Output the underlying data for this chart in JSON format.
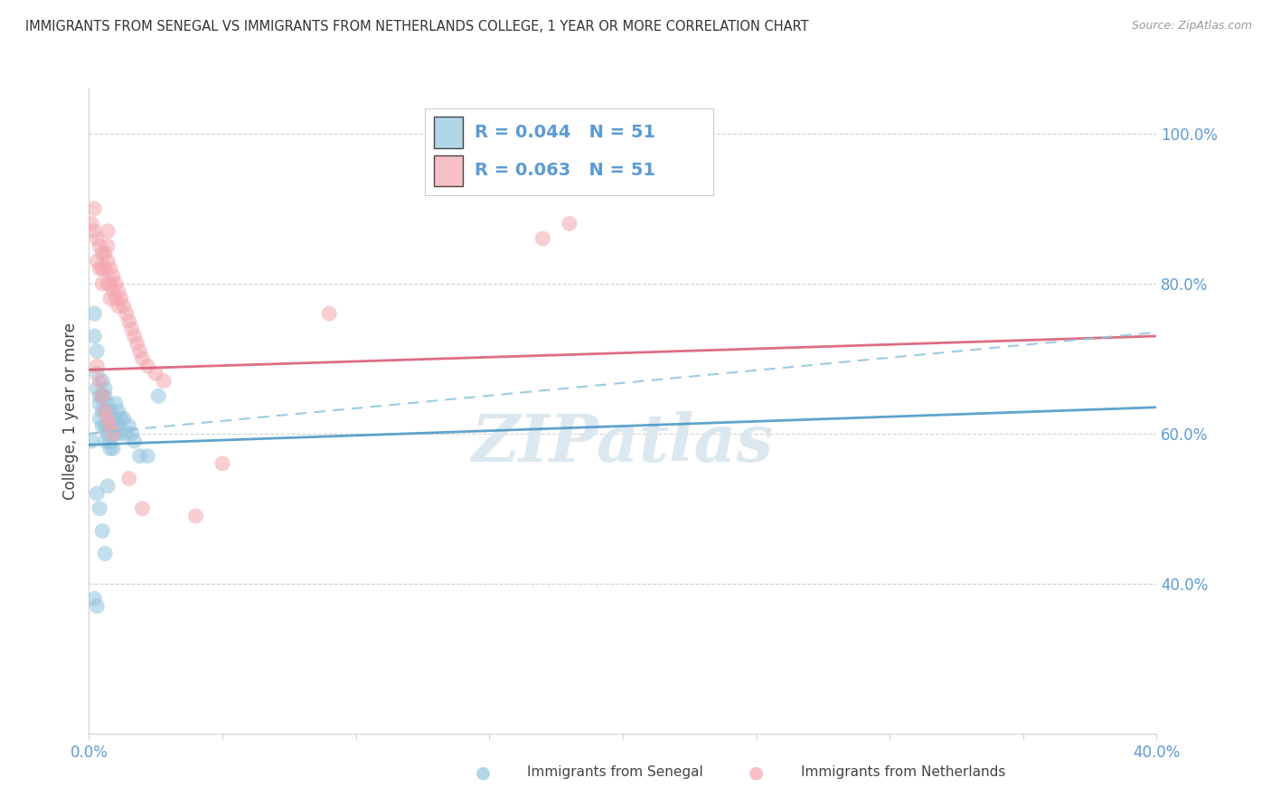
{
  "title": "IMMIGRANTS FROM SENEGAL VS IMMIGRANTS FROM NETHERLANDS COLLEGE, 1 YEAR OR MORE CORRELATION CHART",
  "source": "Source: ZipAtlas.com",
  "xlabel_blue": "Immigrants from Senegal",
  "xlabel_pink": "Immigrants from Netherlands",
  "ylabel": "College, 1 year or more",
  "xmin": 0.0,
  "xmax": 0.4,
  "ymin": 0.2,
  "ymax": 1.06,
  "right_yticks": [
    1.0,
    0.8,
    0.6,
    0.4
  ],
  "right_yticklabels": [
    "100.0%",
    "80.0%",
    "60.0%",
    "40.0%"
  ],
  "xticks": [
    0.0,
    0.05,
    0.1,
    0.15,
    0.2,
    0.25,
    0.3,
    0.35,
    0.4
  ],
  "xticklabels": [
    "0.0%",
    "",
    "",
    "",
    "",
    "",
    "",
    "",
    "40.0%"
  ],
  "legend_blue_R": "R = 0.044",
  "legend_blue_N": "N = 51",
  "legend_pink_R": "R = 0.063",
  "legend_pink_N": "N = 51",
  "blue_color": "#92c5de",
  "pink_color": "#f4a6b0",
  "blue_line_color": "#4393c3",
  "pink_line_color": "#d6546e",
  "dashed_line_color": "#92c5de",
  "title_color": "#333333",
  "axis_color": "#5b9bd5",
  "grid_color": "#d0d0d0",
  "watermark_color": "#dce8f0",
  "senegal_x": [
    0.001,
    0.002,
    0.002,
    0.003,
    0.003,
    0.003,
    0.004,
    0.004,
    0.004,
    0.005,
    0.005,
    0.005,
    0.005,
    0.006,
    0.006,
    0.006,
    0.006,
    0.006,
    0.007,
    0.007,
    0.007,
    0.007,
    0.008,
    0.008,
    0.008,
    0.008,
    0.009,
    0.009,
    0.009,
    0.01,
    0.01,
    0.01,
    0.011,
    0.011,
    0.012,
    0.012,
    0.013,
    0.014,
    0.015,
    0.016,
    0.017,
    0.019,
    0.022,
    0.026,
    0.002,
    0.003,
    0.003,
    0.004,
    0.005,
    0.006,
    0.007
  ],
  "senegal_y": [
    0.59,
    0.76,
    0.73,
    0.71,
    0.68,
    0.66,
    0.65,
    0.64,
    0.62,
    0.67,
    0.65,
    0.63,
    0.61,
    0.66,
    0.65,
    0.63,
    0.61,
    0.59,
    0.64,
    0.63,
    0.61,
    0.6,
    0.63,
    0.61,
    0.59,
    0.58,
    0.62,
    0.6,
    0.58,
    0.64,
    0.62,
    0.6,
    0.63,
    0.61,
    0.62,
    0.6,
    0.62,
    0.6,
    0.61,
    0.6,
    0.59,
    0.57,
    0.57,
    0.65,
    0.38,
    0.37,
    0.52,
    0.5,
    0.47,
    0.44,
    0.53
  ],
  "netherlands_x": [
    0.001,
    0.002,
    0.002,
    0.003,
    0.003,
    0.004,
    0.004,
    0.005,
    0.005,
    0.005,
    0.006,
    0.006,
    0.007,
    0.007,
    0.007,
    0.007,
    0.008,
    0.008,
    0.008,
    0.009,
    0.009,
    0.01,
    0.01,
    0.011,
    0.011,
    0.012,
    0.013,
    0.014,
    0.015,
    0.016,
    0.017,
    0.018,
    0.019,
    0.02,
    0.022,
    0.025,
    0.028,
    0.003,
    0.004,
    0.005,
    0.006,
    0.007,
    0.008,
    0.009,
    0.015,
    0.02,
    0.17,
    0.18,
    0.09,
    0.05,
    0.04
  ],
  "netherlands_y": [
    0.88,
    0.9,
    0.87,
    0.86,
    0.83,
    0.85,
    0.82,
    0.84,
    0.82,
    0.8,
    0.84,
    0.82,
    0.87,
    0.85,
    0.83,
    0.8,
    0.82,
    0.8,
    0.78,
    0.81,
    0.79,
    0.8,
    0.78,
    0.79,
    0.77,
    0.78,
    0.77,
    0.76,
    0.75,
    0.74,
    0.73,
    0.72,
    0.71,
    0.7,
    0.69,
    0.68,
    0.67,
    0.69,
    0.67,
    0.65,
    0.63,
    0.62,
    0.61,
    0.6,
    0.54,
    0.5,
    0.86,
    0.88,
    0.76,
    0.56,
    0.49
  ],
  "blue_trend_x0": 0.0,
  "blue_trend_x1": 0.4,
  "blue_trend_y0": 0.585,
  "blue_trend_y1": 0.635,
  "pink_trend_x0": 0.0,
  "pink_trend_x1": 0.4,
  "pink_trend_y0": 0.685,
  "pink_trend_y1": 0.73,
  "dashed_trend_x0": 0.0,
  "dashed_trend_x1": 0.4,
  "dashed_trend_y0": 0.6,
  "dashed_trend_y1": 0.735
}
